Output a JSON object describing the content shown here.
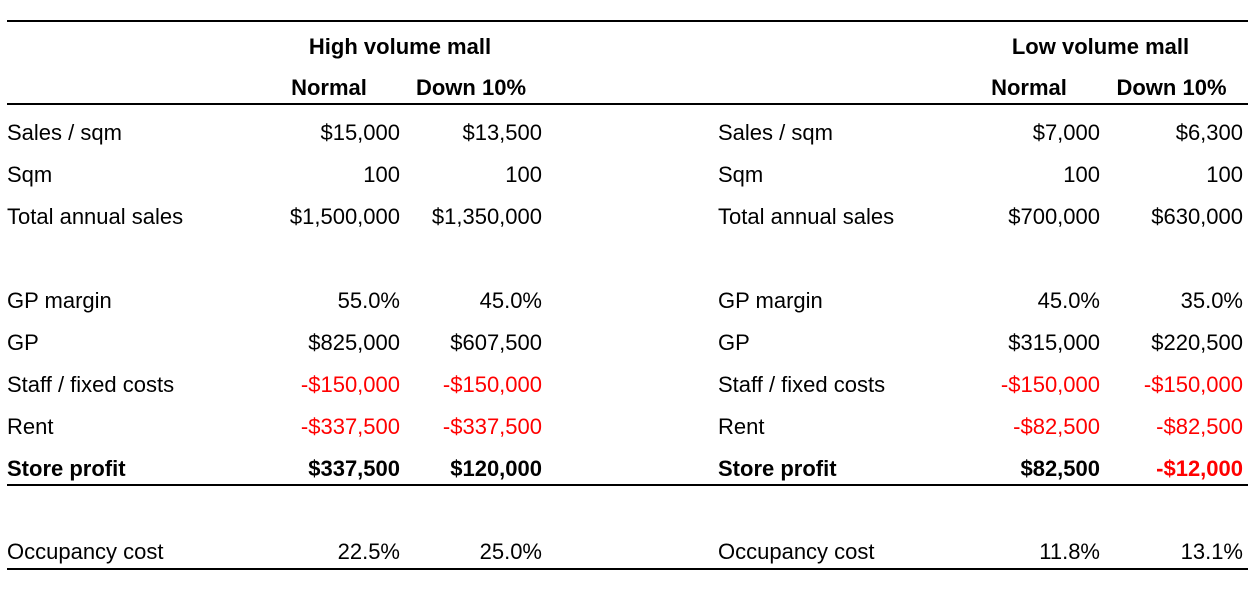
{
  "colors": {
    "text": "#000000",
    "negative": "#ff0000",
    "rule": "#000000",
    "background": "#ffffff"
  },
  "sections": [
    {
      "title": "High volume mall",
      "col_headers": [
        "Normal",
        "Down 10%"
      ],
      "rows": [
        {
          "label": "Sales / sqm",
          "normal": "$15,000",
          "down10": "$13,500"
        },
        {
          "label": "Sqm",
          "normal": "100",
          "down10": "100"
        },
        {
          "label": "Total annual sales",
          "normal": "$1,500,000",
          "down10": "$1,350,000"
        },
        {
          "label": "GP margin",
          "normal": "55.0%",
          "down10": "45.0%"
        },
        {
          "label": "GP",
          "normal": "$825,000",
          "down10": "$607,500"
        },
        {
          "label": "Staff / fixed costs",
          "normal": "-$150,000",
          "down10": "-$150,000"
        },
        {
          "label": "Rent",
          "normal": "-$337,500",
          "down10": "-$337,500"
        },
        {
          "label": "Store profit",
          "normal": "$337,500",
          "down10": "$120,000"
        },
        {
          "label": "Occupancy cost",
          "normal": "22.5%",
          "down10": "25.0%"
        }
      ]
    },
    {
      "title": "Low volume mall",
      "col_headers": [
        "Normal",
        "Down 10%"
      ],
      "rows": [
        {
          "label": "Sales / sqm",
          "normal": "$7,000",
          "down10": "$6,300"
        },
        {
          "label": "Sqm",
          "normal": "100",
          "down10": "100"
        },
        {
          "label": "Total annual sales",
          "normal": "$700,000",
          "down10": "$630,000"
        },
        {
          "label": "GP margin",
          "normal": "45.0%",
          "down10": "35.0%"
        },
        {
          "label": "GP",
          "normal": "$315,000",
          "down10": "$220,500"
        },
        {
          "label": "Staff / fixed costs",
          "normal": "-$150,000",
          "down10": "-$150,000"
        },
        {
          "label": "Rent",
          "normal": "-$82,500",
          "down10": "-$82,500"
        },
        {
          "label": "Store profit",
          "normal": "$82,500",
          "down10": "-$12,000"
        },
        {
          "label": "Occupancy cost",
          "normal": "11.8%",
          "down10": "13.1%"
        }
      ]
    }
  ]
}
